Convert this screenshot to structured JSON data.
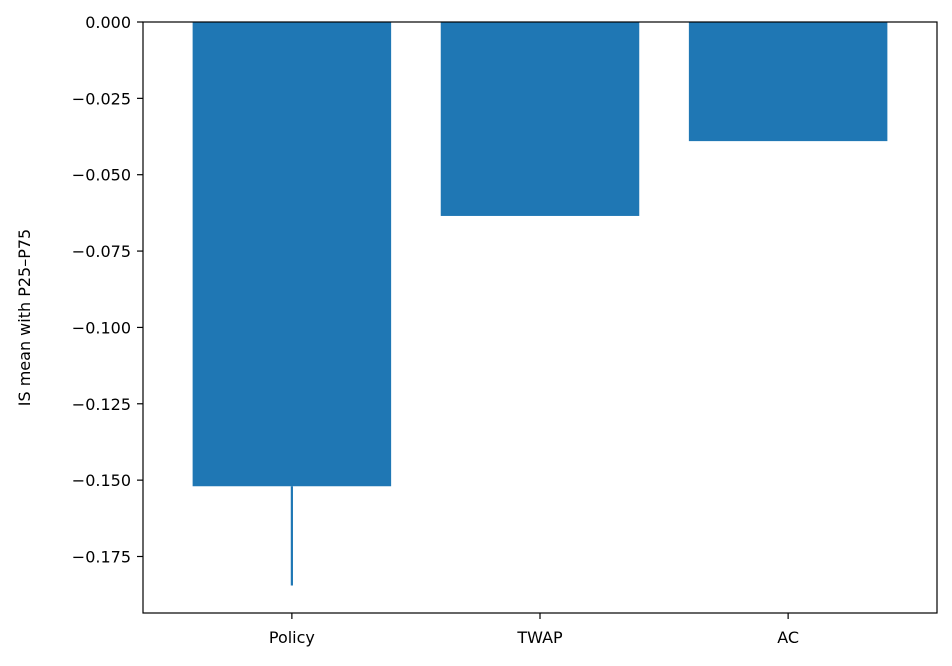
{
  "chart_data": {
    "type": "bar",
    "title": "",
    "xlabel": "",
    "ylabel": "IS mean with P25–P75",
    "categories": [
      "Policy",
      "TWAP",
      "AC"
    ],
    "values": [
      -0.152,
      -0.0635,
      -0.039
    ],
    "error_bars": [
      {
        "category": "Policy",
        "low": -0.1845,
        "high": -0.152
      },
      {
        "category": "TWAP",
        "low": -0.0635,
        "high": -0.0635
      },
      {
        "category": "AC",
        "low": -0.039,
        "high": -0.039
      }
    ],
    "ylim": [
      -0.1935,
      0.0
    ],
    "yticks": [
      0.0,
      -0.025,
      -0.05,
      -0.075,
      -0.1,
      -0.125,
      -0.15,
      -0.175
    ],
    "ytick_labels": [
      "0.000",
      "−0.025",
      "−0.050",
      "−0.075",
      "−0.100",
      "−0.125",
      "−0.150",
      "−0.175"
    ],
    "grid": false,
    "legend": "none",
    "colors": {
      "bar": "#1f77b4",
      "errorbar": "#1f77b4",
      "axis": "#000000"
    }
  }
}
